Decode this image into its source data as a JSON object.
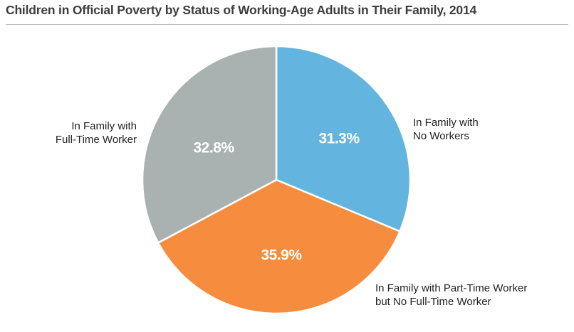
{
  "chart_data": {
    "type": "pie",
    "title": "Children in Official Poverty by Status of Working-Age Adults in Their Family, 2014",
    "slices": [
      {
        "label_lines": [
          "In Family with",
          "No Workers"
        ],
        "value": 31.3,
        "value_label": "31.3%",
        "color": "#64b4e0"
      },
      {
        "label_lines": [
          "In Family with Part-Time Worker",
          "but No Full-Time Worker"
        ],
        "value": 35.9,
        "value_label": "35.9%",
        "color": "#f68c3e"
      },
      {
        "label_lines": [
          "In Family with",
          "Full-Time Worker"
        ],
        "value": 32.8,
        "value_label": "32.8%",
        "color": "#aab2b1"
      }
    ]
  }
}
